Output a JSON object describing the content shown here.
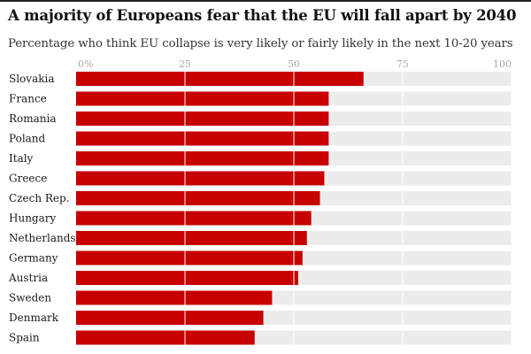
{
  "title": "A majority of Europeans fear that the EU will fall apart by 2040",
  "subtitle": "Percentage who think EU collapse is very likely or fairly likely in the next 10-20 years",
  "colors": {
    "bar": "#c70000",
    "track": "#ececec",
    "gridline": "#ffffff",
    "text": "#121212"
  },
  "chart_data": {
    "type": "bar",
    "orientation": "horizontal",
    "title": "A majority of Europeans fear that the EU will fall apart by 2040",
    "subtitle": "Percentage who think EU collapse is very likely or fairly likely in the next 10-20 years",
    "categories": [
      "Slovakia",
      "France",
      "Romania",
      "Poland",
      "Italy",
      "Greece",
      "Czech Rep.",
      "Hungary",
      "Netherlands",
      "Germany",
      "Austria",
      "Sweden",
      "Denmark",
      "Spain"
    ],
    "values": [
      66,
      58,
      58,
      58,
      58,
      57,
      56,
      54,
      53,
      52,
      51,
      45,
      43,
      41
    ],
    "xlim": [
      0,
      100
    ],
    "ticks": [
      0,
      25,
      50,
      75,
      100
    ],
    "tick_labels": [
      "0%",
      "25",
      "50",
      "75",
      "100"
    ],
    "grid": true,
    "legend": "none"
  }
}
